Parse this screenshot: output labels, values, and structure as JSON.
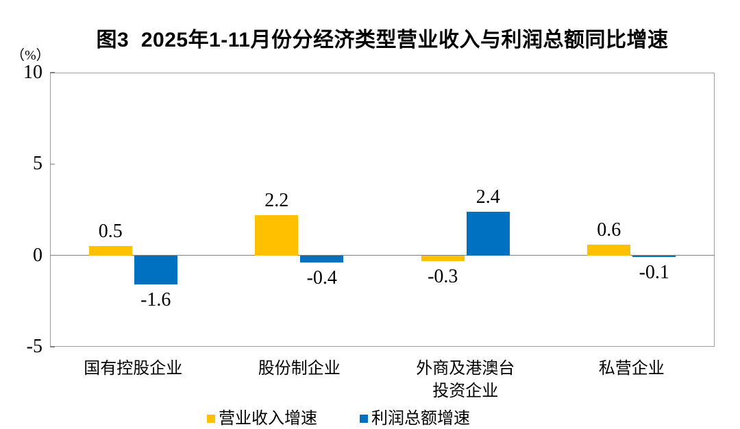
{
  "chart_data": {
    "type": "bar",
    "title": "图3  2025年1-11月份分经济类型营业收入与利润总额同比增速",
    "y_unit": "（%）",
    "categories": [
      "国有控股企业",
      "股份制企业",
      "外商及港澳台\n投资企业",
      "私营企业"
    ],
    "series": [
      {
        "name": "营业收入增速",
        "color": "#FFC000",
        "values": [
          0.5,
          2.2,
          -0.3,
          0.6
        ]
      },
      {
        "name": "利润总额增速",
        "color": "#0070C0",
        "values": [
          -1.6,
          -0.4,
          2.4,
          -0.1
        ]
      }
    ],
    "ylim": [
      -5,
      10
    ],
    "yticks": [
      10,
      5,
      0,
      -5
    ],
    "grid": false,
    "zero_line": true,
    "data_labels": true,
    "data_label_format": "one-decimal",
    "legend_position": "bottom"
  },
  "colors": {
    "revenue": "#FFC000",
    "profit": "#0070C0",
    "plot_border": "#9e9e9e",
    "zero_line": "#808080",
    "text": "#000000",
    "background": "#ffffff"
  }
}
